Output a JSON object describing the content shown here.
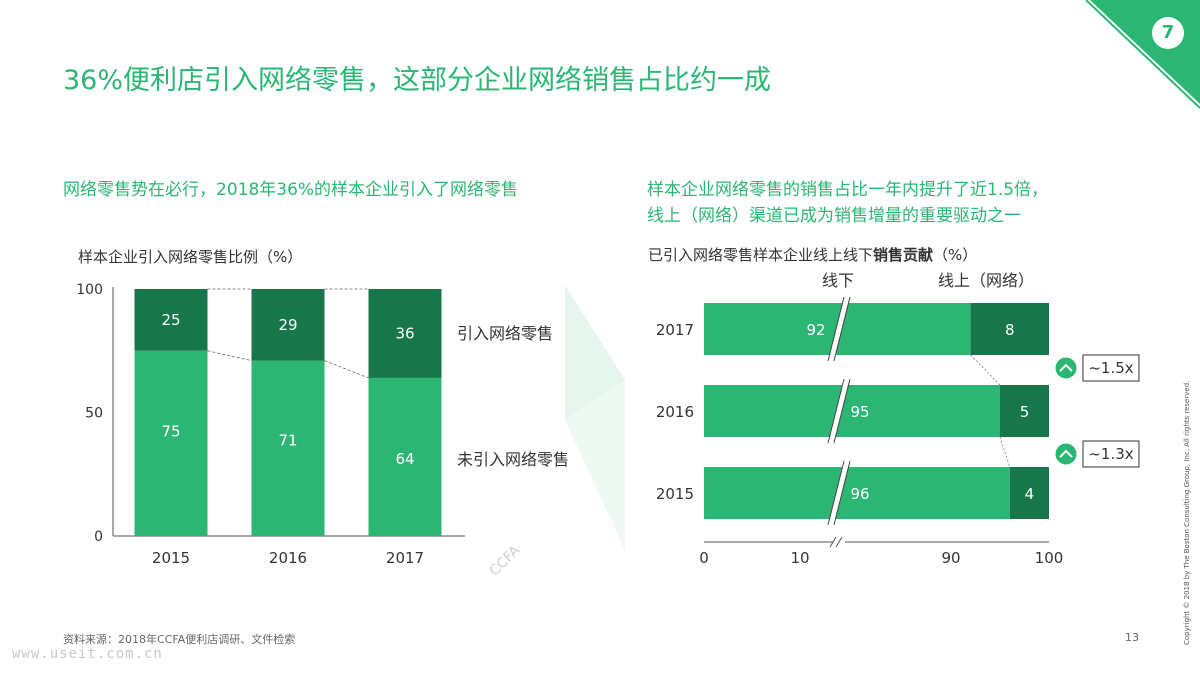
{
  "page": {
    "number": "7",
    "title": "36%便利店引入网络零售，这部分企业网络销售占比约一成",
    "left_subhead": "网络零售势在必行，2018年36%的样本企业引入了网络零售",
    "right_subhead_line1": "样本企业网络零售的销售占比一年内提升了近1.5倍，",
    "right_subhead_line2": "线上（网络）渠道已成为销售增量的重要驱动之一",
    "footer": "资料来源：2018年CCFA便利店调研、文件检索",
    "page_index": "13",
    "watermark_url": "www.useit.com.cn",
    "ccfa_mark": "CCFA",
    "copyright": "Copyright © 2018 by The Boston Consulting Group, Inc.  All rights reserved.",
    "colors": {
      "light": "#2bb673",
      "dark": "#17764a",
      "title": "#2bb673"
    }
  },
  "chart_data": [
    {
      "type": "bar",
      "stacked": true,
      "title_normal": "样本企业引入网络零售比例（%）",
      "categories": [
        "2015",
        "2016",
        "2017"
      ],
      "series": [
        {
          "name": "未引入网络零售",
          "values": [
            75,
            71,
            64
          ]
        },
        {
          "name": "引入网络零售",
          "values": [
            25,
            29,
            36
          ]
        }
      ],
      "ylim": [
        0,
        100
      ],
      "yticks": [
        "0",
        "50",
        "100"
      ]
    },
    {
      "type": "bar",
      "orientation": "horizontal",
      "stacked": true,
      "title_normal": "已引入网络零售样本企业线上线下",
      "title_bold": "销售贡献",
      "title_unit": "（%）",
      "categories": [
        "2017",
        "2016",
        "2015"
      ],
      "series": [
        {
          "name": "线下",
          "values": [
            92,
            95,
            96
          ]
        },
        {
          "name": "线上（网络）",
          "values": [
            8,
            5,
            4
          ]
        }
      ],
      "xticks": [
        "0",
        "10",
        "90",
        "100"
      ],
      "axis_break": [
        10,
        90
      ],
      "growth_labels": [
        "~1.5x",
        "~1.3x"
      ]
    }
  ]
}
